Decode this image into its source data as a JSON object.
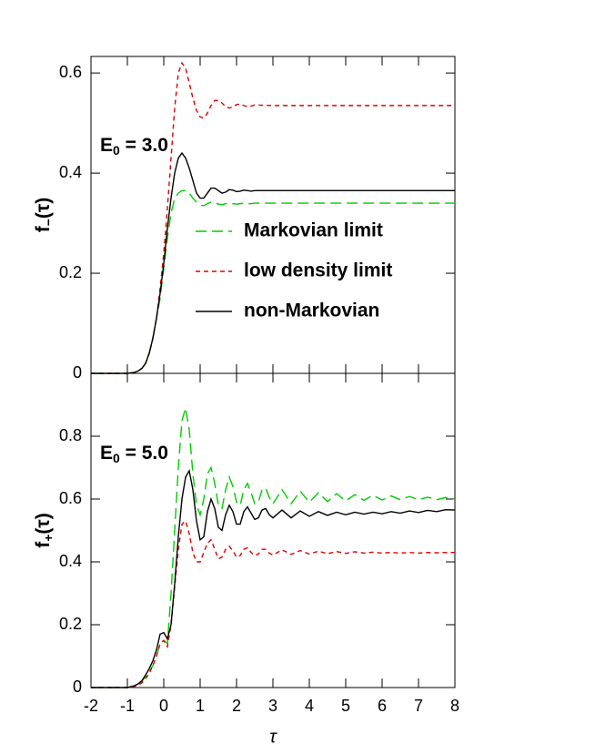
{
  "chart_data": [
    {
      "type": "line",
      "annotation": {
        "text": "E",
        "subscript": "0",
        "after": " = 3.0"
      },
      "ylabel": {
        "text": "f",
        "subscript": "−",
        "after": "(τ)"
      },
      "xlim": [
        -2,
        8
      ],
      "xticks": [
        -2,
        -1,
        0,
        1,
        2,
        3,
        4,
        5,
        6,
        7,
        8
      ],
      "ylim": [
        0,
        0.633
      ],
      "yticks": [
        0,
        0.2,
        0.4,
        0.6
      ],
      "legend": "center",
      "x": [
        -2,
        -1,
        -0.9,
        -0.8,
        -0.7,
        -0.6,
        -0.5,
        -0.4,
        -0.3,
        -0.2,
        -0.1,
        0,
        0.1,
        0.2,
        0.3,
        0.4,
        0.5,
        0.6,
        0.7,
        0.8,
        0.9,
        1.0,
        1.1,
        1.2,
        1.3,
        1.4,
        1.5,
        1.6,
        1.7,
        1.8,
        1.9,
        2.0,
        2.1,
        2.2,
        2.3,
        2.4,
        2.5,
        3,
        4,
        5,
        6,
        7,
        8
      ],
      "series": [
        {
          "name": "Markovian limit",
          "color": "#00cc00",
          "style": "dashed",
          "values": [
            0,
            0,
            0.001,
            0.002,
            0.005,
            0.01,
            0.02,
            0.04,
            0.07,
            0.11,
            0.15,
            0.21,
            0.27,
            0.32,
            0.35,
            0.36,
            0.365,
            0.365,
            0.36,
            0.35,
            0.342,
            0.336,
            0.335,
            0.339,
            0.342,
            0.341,
            0.338,
            0.337,
            0.339,
            0.34,
            0.339,
            0.338,
            0.339,
            0.34,
            0.339,
            0.339,
            0.34,
            0.34,
            0.34,
            0.34,
            0.34,
            0.34,
            0.34
          ]
        },
        {
          "name": "low density limit",
          "color": "#e00000",
          "style": "dotted",
          "values": [
            0,
            0,
            0.001,
            0.002,
            0.005,
            0.01,
            0.02,
            0.04,
            0.07,
            0.11,
            0.17,
            0.24,
            0.33,
            0.43,
            0.53,
            0.6,
            0.62,
            0.61,
            0.58,
            0.55,
            0.525,
            0.512,
            0.51,
            0.52,
            0.535,
            0.545,
            0.545,
            0.54,
            0.533,
            0.53,
            0.532,
            0.537,
            0.538,
            0.535,
            0.533,
            0.534,
            0.536,
            0.535,
            0.535,
            0.535,
            0.535,
            0.535,
            0.535
          ]
        },
        {
          "name": "non-Markovian",
          "color": "#000000",
          "style": "solid",
          "values": [
            0,
            0,
            0.001,
            0.002,
            0.005,
            0.01,
            0.02,
            0.04,
            0.07,
            0.11,
            0.16,
            0.22,
            0.29,
            0.35,
            0.4,
            0.43,
            0.44,
            0.43,
            0.41,
            0.385,
            0.36,
            0.35,
            0.35,
            0.36,
            0.37,
            0.37,
            0.365,
            0.36,
            0.362,
            0.367,
            0.366,
            0.363,
            0.364,
            0.366,
            0.365,
            0.364,
            0.365,
            0.365,
            0.365,
            0.365,
            0.365,
            0.365,
            0.365
          ]
        }
      ]
    },
    {
      "type": "line",
      "annotation": {
        "text": "E",
        "subscript": "0",
        "after": " = 5.0"
      },
      "ylabel": {
        "text": "f",
        "subscript": "+",
        "after": "(τ)"
      },
      "xlabel": "τ",
      "xlim": [
        -2,
        8
      ],
      "xticks": [
        -2,
        -1,
        0,
        1,
        2,
        3,
        4,
        5,
        6,
        7,
        8
      ],
      "ylim": [
        0,
        1.0
      ],
      "yticks": [
        0,
        0.2,
        0.4,
        0.6,
        0.8
      ],
      "x": [
        -2,
        -1,
        -0.9,
        -0.8,
        -0.7,
        -0.6,
        -0.5,
        -0.4,
        -0.3,
        -0.2,
        -0.1,
        0,
        0.1,
        0.2,
        0.3,
        0.4,
        0.5,
        0.6,
        0.7,
        0.8,
        0.9,
        1.0,
        1.1,
        1.2,
        1.3,
        1.4,
        1.5,
        1.6,
        1.7,
        1.8,
        1.9,
        2.0,
        2.1,
        2.2,
        2.3,
        2.4,
        2.5,
        2.6,
        2.7,
        2.8,
        2.9,
        3.0,
        3.25,
        3.5,
        3.75,
        4.0,
        4.25,
        4.5,
        4.75,
        5.0,
        5.25,
        5.5,
        5.75,
        6.0,
        6.25,
        6.5,
        6.75,
        7.0,
        7.25,
        7.5,
        7.75,
        8.0
      ],
      "series": [
        {
          "color": "#00cc00",
          "style": "dashed",
          "values": [
            0,
            0,
            0.002,
            0.005,
            0.01,
            0.02,
            0.035,
            0.05,
            0.07,
            0.1,
            0.14,
            0.15,
            0.14,
            0.3,
            0.5,
            0.7,
            0.85,
            0.89,
            0.82,
            0.68,
            0.58,
            0.55,
            0.6,
            0.68,
            0.7,
            0.65,
            0.58,
            0.57,
            0.63,
            0.67,
            0.64,
            0.59,
            0.58,
            0.63,
            0.65,
            0.62,
            0.585,
            0.59,
            0.63,
            0.635,
            0.605,
            0.585,
            0.63,
            0.585,
            0.625,
            0.59,
            0.62,
            0.592,
            0.617,
            0.594,
            0.614,
            0.596,
            0.612,
            0.597,
            0.61,
            0.598,
            0.608,
            0.598,
            0.606,
            0.598,
            0.605,
            0.6
          ]
        },
        {
          "color": "#e00000",
          "style": "dotted",
          "values": [
            0,
            0,
            0.002,
            0.004,
            0.008,
            0.015,
            0.028,
            0.045,
            0.07,
            0.1,
            0.14,
            0.15,
            0.13,
            0.2,
            0.32,
            0.44,
            0.52,
            0.53,
            0.49,
            0.43,
            0.4,
            0.4,
            0.43,
            0.46,
            0.47,
            0.44,
            0.41,
            0.415,
            0.44,
            0.45,
            0.435,
            0.415,
            0.42,
            0.44,
            0.445,
            0.43,
            0.42,
            0.425,
            0.44,
            0.44,
            0.428,
            0.422,
            0.438,
            0.424,
            0.436,
            0.425,
            0.434,
            0.426,
            0.433,
            0.427,
            0.432,
            0.428,
            0.431,
            0.428,
            0.43,
            0.428,
            0.43,
            0.428,
            0.43,
            0.429,
            0.43,
            0.43
          ]
        },
        {
          "color": "#000000",
          "style": "solid",
          "values": [
            0,
            0,
            0.003,
            0.006,
            0.012,
            0.022,
            0.04,
            0.06,
            0.085,
            0.12,
            0.17,
            0.175,
            0.155,
            0.2,
            0.33,
            0.48,
            0.6,
            0.67,
            0.69,
            0.63,
            0.53,
            0.47,
            0.48,
            0.56,
            0.6,
            0.57,
            0.51,
            0.5,
            0.55,
            0.58,
            0.56,
            0.52,
            0.52,
            0.56,
            0.575,
            0.555,
            0.535,
            0.54,
            0.565,
            0.57,
            0.55,
            0.54,
            0.565,
            0.54,
            0.562,
            0.545,
            0.56,
            0.548,
            0.558,
            0.55,
            0.558,
            0.552,
            0.558,
            0.553,
            0.56,
            0.555,
            0.562,
            0.557,
            0.564,
            0.56,
            0.566,
            0.565
          ]
        }
      ]
    }
  ]
}
